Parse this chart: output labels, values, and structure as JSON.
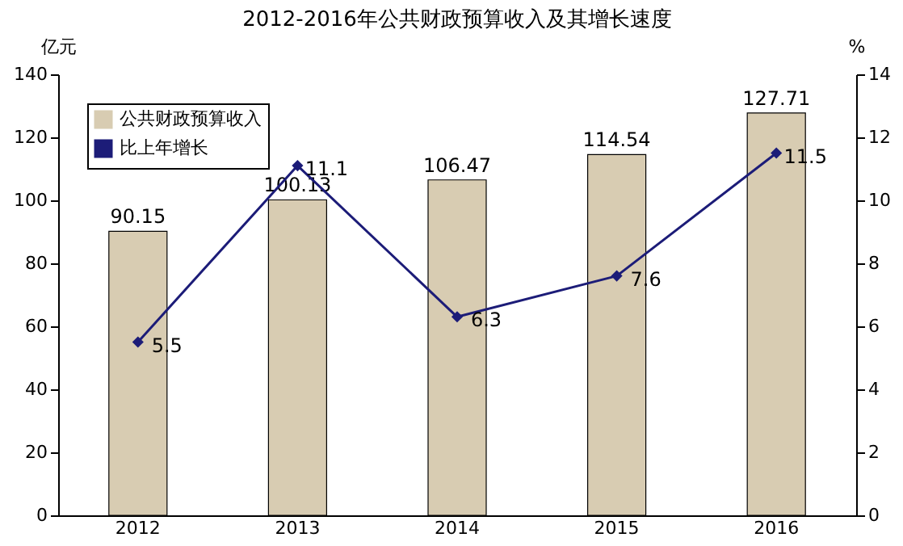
{
  "chart_data": {
    "type": "bar",
    "title": "2012-2016年公共财政预算收入及其增长速度",
    "ylabel": "亿元",
    "y2label": "%",
    "categories": [
      "2012",
      "2013",
      "2014",
      "2015",
      "2016"
    ],
    "series": [
      {
        "name": "公共财政预算收入",
        "color": "#d8ccb2",
        "values": [
          90.15,
          100.13,
          106.47,
          114.54,
          127.71
        ]
      },
      {
        "name": "比上年增长",
        "type": "line",
        "axis": "y2",
        "color": "#1c1c78",
        "marker": "diamond",
        "values": [
          5.5,
          11.1,
          6.3,
          7.6,
          11.5
        ]
      }
    ],
    "ylim": [
      0,
      140
    ],
    "yticks": [
      0,
      20,
      40,
      60,
      80,
      100,
      120,
      140
    ],
    "y2lim": [
      0,
      14
    ],
    "y2ticks": [
      0,
      2,
      4,
      6,
      8,
      10,
      12,
      14
    ],
    "data_labels": true,
    "legend": "top left",
    "grid": false
  }
}
